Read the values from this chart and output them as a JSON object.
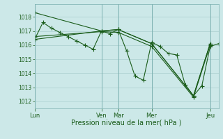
{
  "background_color": "#cce8e8",
  "grid_color": "#aacfcf",
  "line_color": "#1a5c1a",
  "xlabel": "Pression niveau de la mer( hPa )",
  "ylim": [
    1011.5,
    1018.9
  ],
  "yticks": [
    1012,
    1013,
    1014,
    1015,
    1016,
    1017,
    1018
  ],
  "xlim": [
    0,
    22
  ],
  "x_day_positions": [
    0,
    8,
    10,
    14,
    21
  ],
  "x_day_labels": [
    "Lun",
    "Ven",
    "Mar",
    "Mer",
    "Jeu"
  ],
  "series1_x": [
    0,
    1,
    2,
    3,
    4,
    5,
    6,
    7,
    8,
    9,
    10,
    11,
    12,
    13,
    14,
    15,
    16,
    17,
    18,
    19,
    20,
    21,
    22
  ],
  "series1_y": [
    1016.4,
    1017.6,
    1017.2,
    1016.9,
    1016.6,
    1016.3,
    1016.0,
    1015.7,
    1017.0,
    1016.8,
    1017.1,
    1015.6,
    1013.8,
    1013.5,
    1016.2,
    1015.9,
    1015.4,
    1015.3,
    1013.2,
    1012.4,
    1013.1,
    1015.9,
    1016.1
  ],
  "series2_x": [
    0,
    8,
    10,
    14,
    19,
    21
  ],
  "series2_y": [
    1018.3,
    1017.0,
    1017.1,
    1016.1,
    1012.4,
    1016.1
  ],
  "series3_x": [
    0,
    8,
    10,
    14,
    19,
    21
  ],
  "series3_y": [
    1016.4,
    1017.0,
    1017.1,
    1016.1,
    1012.4,
    1016.1
  ],
  "series4_x": [
    0,
    8,
    10,
    14,
    19,
    21
  ],
  "series4_y": [
    1016.6,
    1016.95,
    1016.9,
    1015.9,
    1012.3,
    1016.0
  ]
}
